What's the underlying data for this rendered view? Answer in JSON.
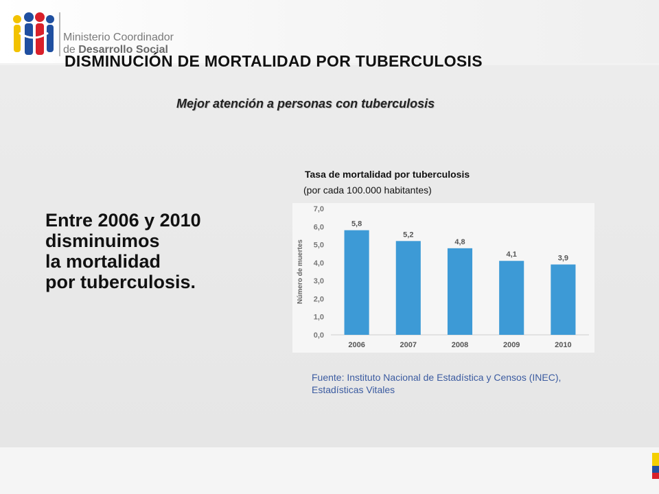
{
  "header": {
    "org_line1": "Ministerio Coordinador",
    "org_line2_prefix": "de ",
    "org_line2_bold": "Desarrollo Social",
    "logo_icon": "people-logo-icon"
  },
  "slide": {
    "title": "DISMINUCIÓN DE MORTALIDAD POR TUBERCULOSIS",
    "subtitle": "Mejor atención a personas con tuberculosis",
    "statement_lines": [
      "Entre 2006 y 2010",
      "disminuimos",
      "la mortalidad",
      "por tuberculosis."
    ],
    "source": "Fuente: Instituto Nacional de Estadística y Censos (INEC), Estadísticas Vitales"
  },
  "colors": {
    "bar": "#3d9ad6",
    "source_text": "#3b5ba0",
    "flag": [
      "#f4cf00",
      "#1f4fa0",
      "#d8202a"
    ]
  },
  "chart_data": {
    "type": "bar",
    "title": "Tasa de mortalidad por tuberculosis",
    "subtitle": "(por cada 100.000 habitantes)",
    "ylabel": "Número de muertes",
    "categories": [
      "2006",
      "2007",
      "2008",
      "2009",
      "2010"
    ],
    "values": [
      5.8,
      5.2,
      4.8,
      4.1,
      3.9
    ],
    "value_labels": [
      "5,8",
      "5,2",
      "4,8",
      "4,1",
      "3,9"
    ],
    "ylim": [
      0,
      7
    ],
    "yticks": [
      "0,0",
      "1,0",
      "2,0",
      "3,0",
      "4,0",
      "5,0",
      "6,0",
      "7,0"
    ],
    "grid": false,
    "legend": "none"
  }
}
